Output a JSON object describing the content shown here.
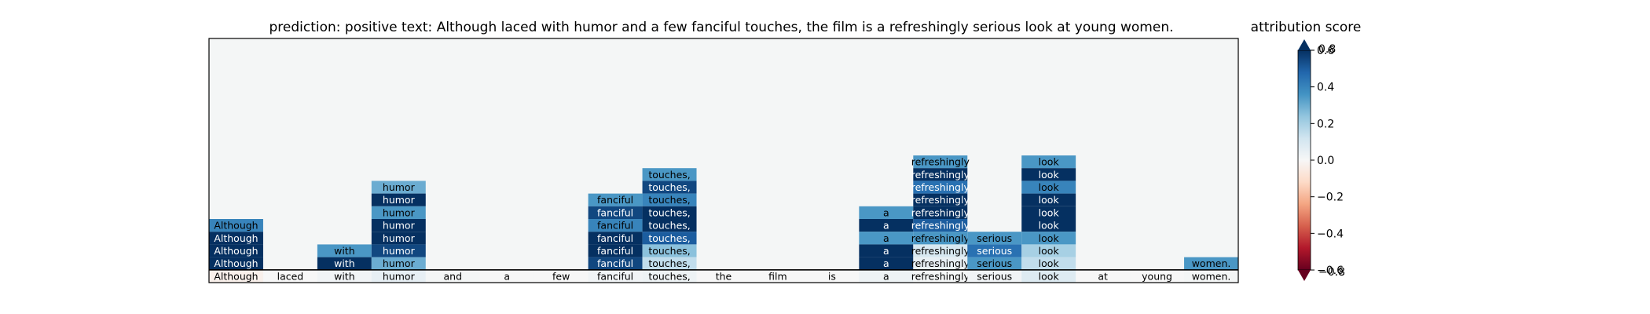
{
  "chart_data": {
    "type": "heatmap",
    "title": "prediction:  positive     text:  Although laced with humor and a few fanciful touches, the film is a refreshingly serious look at young women.",
    "tokens": [
      "Although",
      "laced",
      "with",
      "humor",
      "and",
      "a",
      "few",
      "fanciful",
      "touches,",
      "the",
      "film",
      "is",
      "a",
      "refreshingly",
      "serious",
      "look",
      "at",
      "young",
      "women."
    ],
    "base_row_scores": [
      -0.03,
      0.0,
      0.02,
      0.05,
      0.01,
      0.0,
      0.0,
      0.02,
      0.03,
      0.0,
      0.0,
      0.0,
      0.03,
      0.01,
      0.02,
      0.08,
      0.0,
      0.0,
      0.01
    ],
    "blocks": [
      {
        "column": 0,
        "scores": [
          0.4,
          0.6,
          0.6,
          0.65
        ]
      },
      {
        "column": 2,
        "scores": [
          0.35,
          0.6
        ]
      },
      {
        "column": 3,
        "scores": [
          0.3,
          0.6,
          0.35,
          0.7,
          0.85,
          0.55,
          0.3
        ]
      },
      {
        "column": 7,
        "scores": [
          0.35,
          0.55,
          0.4,
          0.6,
          0.85,
          0.55
        ]
      },
      {
        "column": 8,
        "scores": [
          0.35,
          0.55,
          0.4,
          0.6,
          0.85,
          0.5,
          0.25,
          0.15
        ]
      },
      {
        "column": 12,
        "scores": [
          0.35,
          0.6,
          0.35,
          0.6,
          0.85
        ]
      },
      {
        "column": 13,
        "scores": [
          0.35,
          0.6,
          0.45,
          0.65,
          0.85,
          0.5,
          0.35,
          0.1,
          0.05
        ]
      },
      {
        "column": 14,
        "scores": [
          0.35,
          0.45,
          0.35
        ]
      },
      {
        "column": 15,
        "scores": [
          0.35,
          0.65,
          0.4,
          0.65,
          0.85,
          0.6,
          0.35,
          0.2,
          0.15
        ]
      },
      {
        "column": 18,
        "scores": [
          0.35
        ]
      }
    ],
    "colorbar": {
      "label": "attribution score",
      "vmin": -0.6,
      "vmax": 0.6,
      "ticks": [
        -0.6,
        -0.4,
        -0.2,
        0.0,
        0.2,
        0.4,
        0.6
      ],
      "tick_labels": [
        "−0.6",
        "−0.4",
        "−0.2",
        "0.0",
        "0.2",
        "0.4",
        "0.6"
      ],
      "extra_tick_labels": [
        "−0.8",
        "0.8"
      ]
    },
    "colormap": [
      "#67001f",
      "#b2182b",
      "#d6604d",
      "#f4a582",
      "#fddbc7",
      "#f7f7f7",
      "#d1e5f0",
      "#92c5de",
      "#4393c3",
      "#2166ac",
      "#053061"
    ],
    "empty_fill": "#f4f6f6"
  }
}
